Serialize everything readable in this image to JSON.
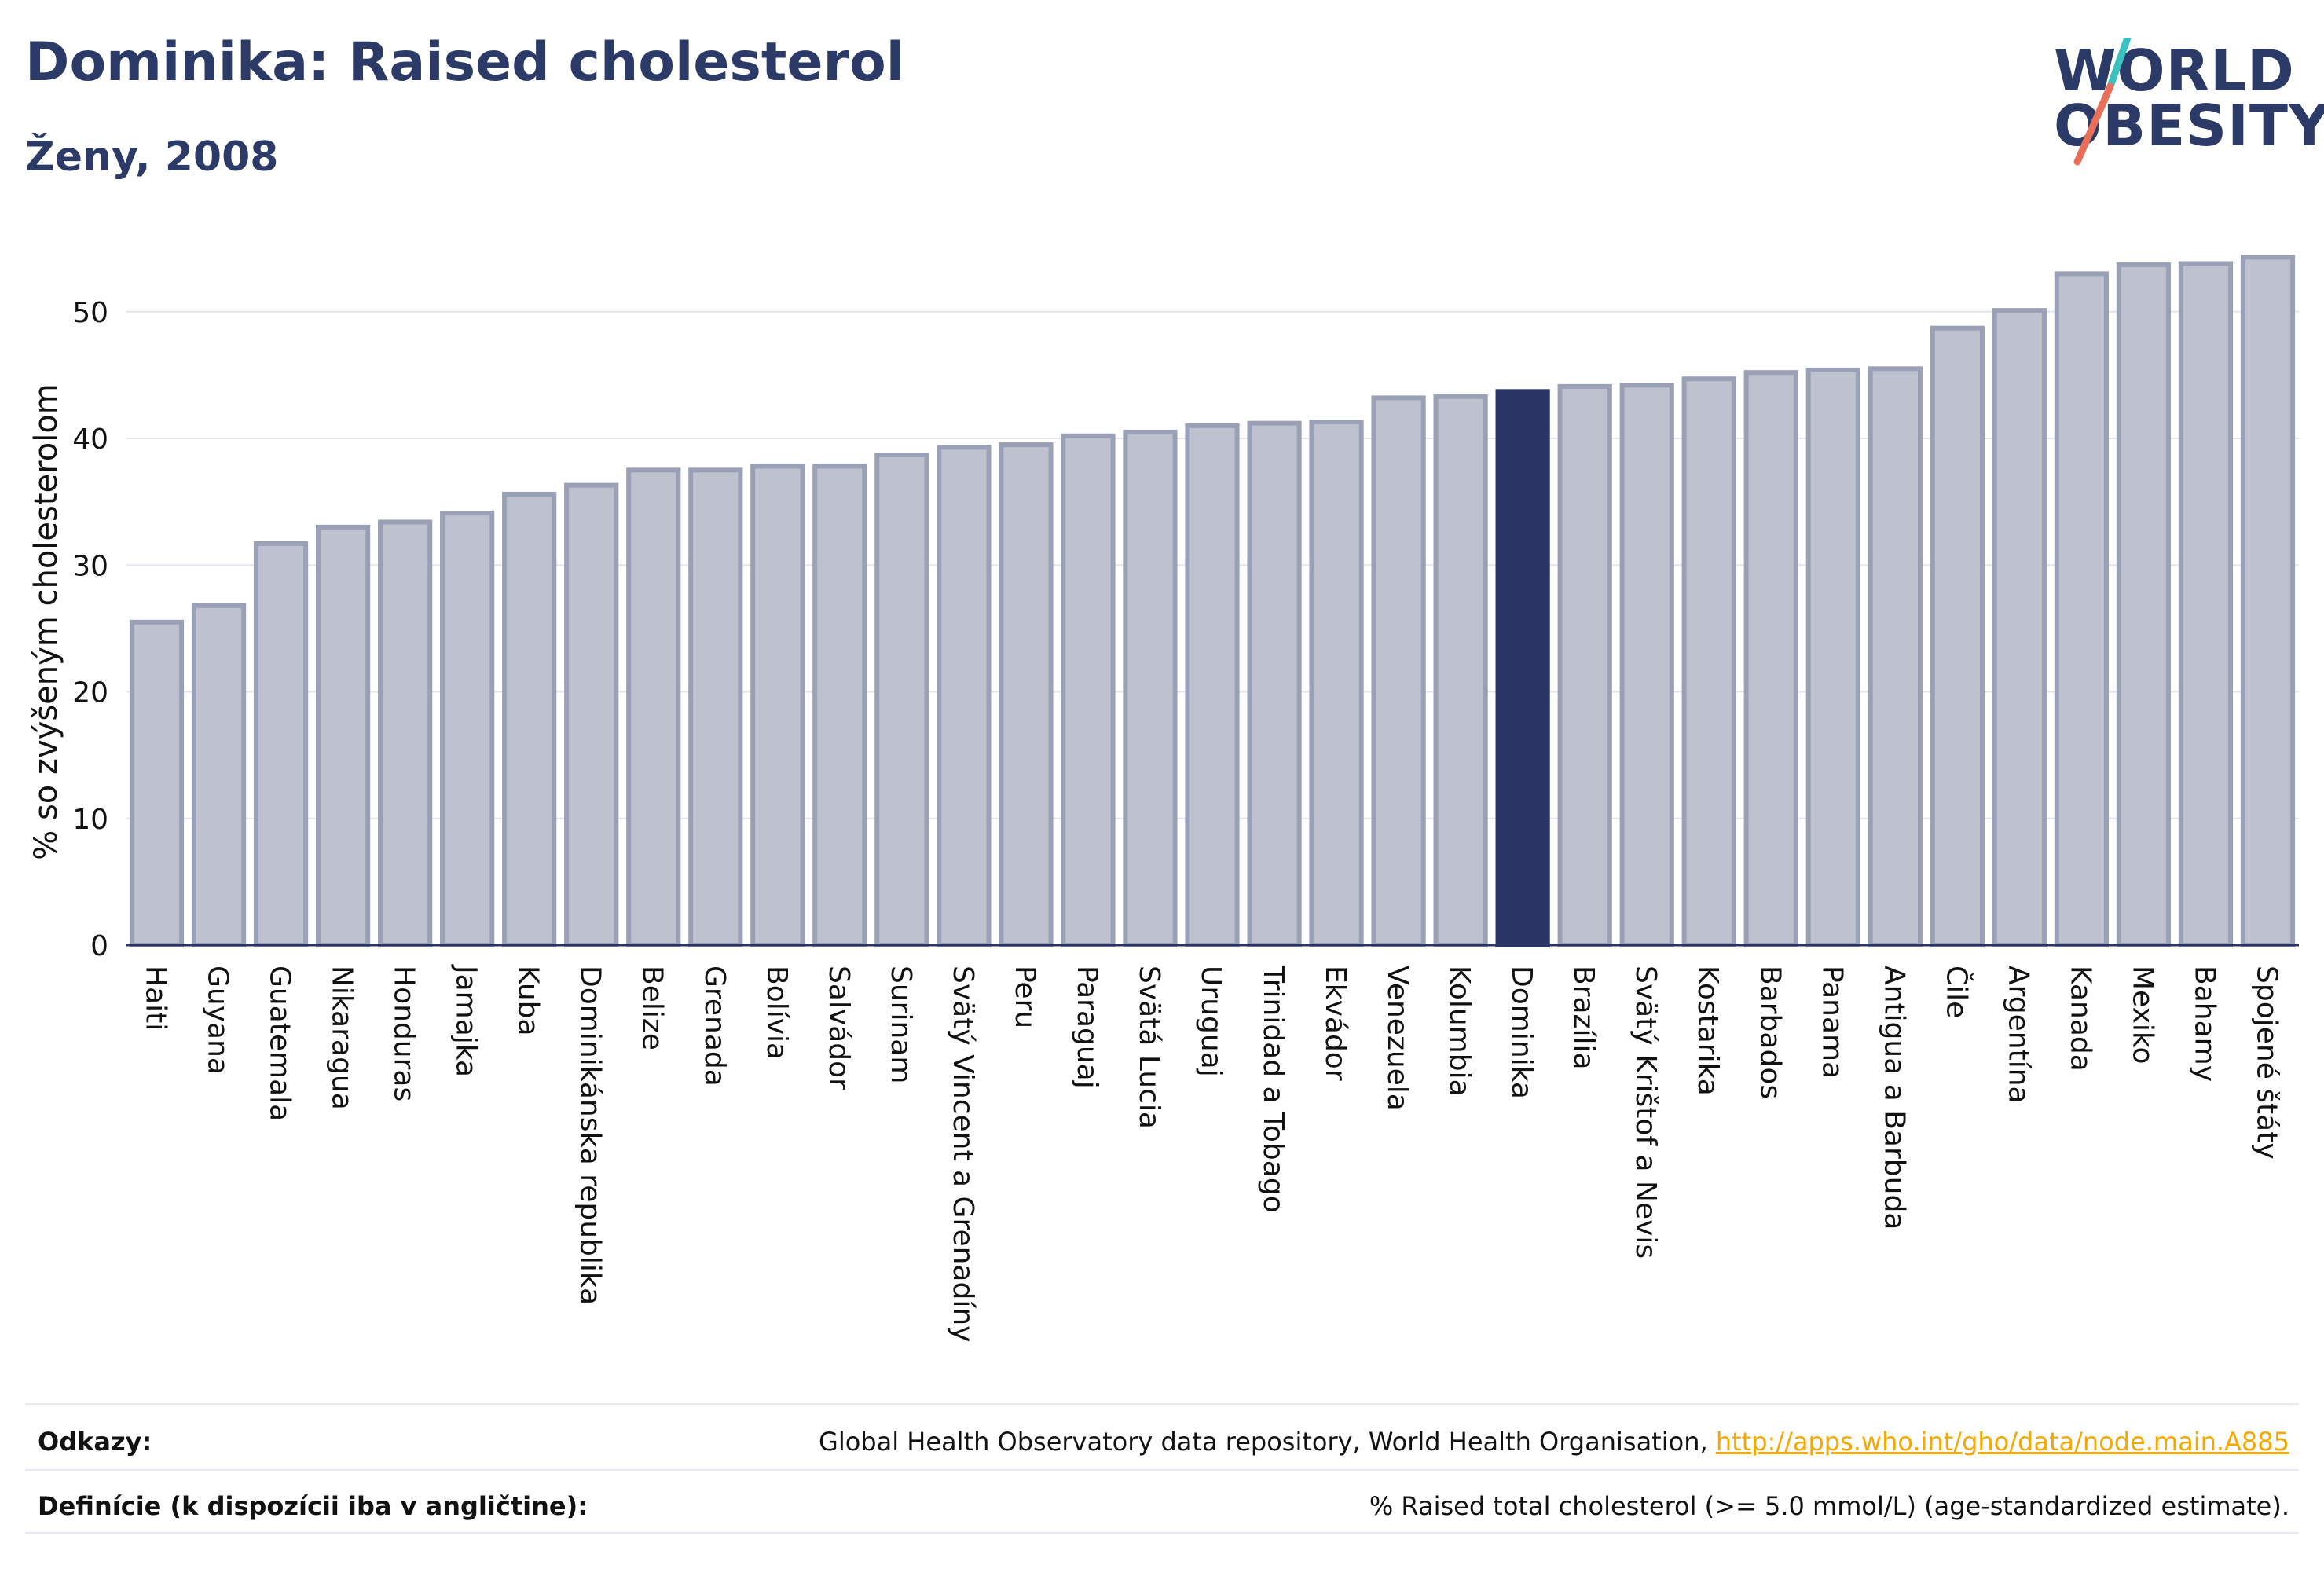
{
  "header": {
    "title": "Dominika: Raised cholesterol",
    "subtitle": "Ženy, 2008"
  },
  "logo": {
    "line1": "WORLD",
    "line2": "OBESITY",
    "slash_colors": [
      "#3cc1c1",
      "#e8705a"
    ]
  },
  "colors": {
    "bar_default": "#bec2cf",
    "bar_default_stroke": "#9aa0b6",
    "bar_highlight": "#2b3564",
    "axis": "#2b3564",
    "grid": "#e4e6ee",
    "text": "#111111"
  },
  "chart_data": {
    "type": "bar",
    "ylabel": "% so zvýšeným cholesterolom",
    "ylim": [
      0,
      56
    ],
    "yticks": [
      0,
      10,
      20,
      30,
      40,
      50
    ],
    "grid": true,
    "highlight": "Dominika",
    "categories": [
      "Haiti",
      "Guyana",
      "Guatemala",
      "Nikaragua",
      "Honduras",
      "Jamajka",
      "Kuba",
      "Dominikánska republika",
      "Belize",
      "Grenada",
      "Bolívia",
      "Salvádor",
      "Surinam",
      "Svätý Vincent a Grenadíny",
      "Peru",
      "Paraguaj",
      "Svätá Lucia",
      "Uruguaj",
      "Trinidad a Tobago",
      "Ekvádor",
      "Venezuela",
      "Kolumbia",
      "Dominika",
      "Brazília",
      "Svätý Krištof a Nevis",
      "Kostarika",
      "Barbados",
      "Panama",
      "Antigua a Barbuda",
      "Čile",
      "Argentína",
      "Kanada",
      "Mexiko",
      "Bahamy",
      "Spojené štáty"
    ],
    "values": [
      25.5,
      26.8,
      31.7,
      33.0,
      33.4,
      34.1,
      35.6,
      36.3,
      37.5,
      37.5,
      37.8,
      37.8,
      38.7,
      39.3,
      39.5,
      40.2,
      40.5,
      41.0,
      41.2,
      41.3,
      43.2,
      43.3,
      43.7,
      44.1,
      44.2,
      44.7,
      45.2,
      45.4,
      45.5,
      48.7,
      50.1,
      53.0,
      53.7,
      53.8,
      54.3
    ]
  },
  "footer": {
    "references_label": "Odkazy:",
    "references_text": "Global Health Observatory data repository, World Health Organisation, ",
    "references_link": "http://apps.who.int/gho/data/node.main.A885",
    "definitions_label": "Definície (k dispozícii iba v angličtine):",
    "definitions_text": "% Raised total cholesterol (>= 5.0 mmol/L) (age-standardized estimate)."
  }
}
